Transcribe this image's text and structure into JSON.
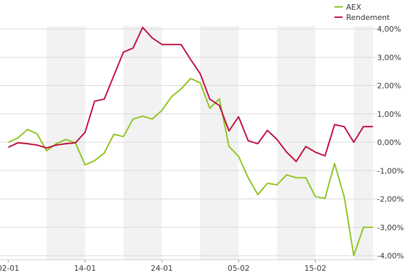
{
  "chart_data": {
    "type": "line",
    "title": "",
    "xlabel": "",
    "ylabel": "",
    "ylim": [
      -4.0,
      4.0
    ],
    "y_ticks": [
      "4,00%",
      "3,00%",
      "2,00%",
      "1,00%",
      "0,00%",
      "-1,00%",
      "-2,00%",
      "-3,00%",
      "-4,00%"
    ],
    "y_tick_values": [
      4,
      3,
      2,
      1,
      0,
      -1,
      -2,
      -3,
      -4
    ],
    "x_tick_labels": [
      "02-01",
      "14-01",
      "24-01",
      "05-02",
      "15-02"
    ],
    "x_tick_indices": [
      0,
      8,
      16,
      24,
      32
    ],
    "shaded_bands": [
      [
        4,
        8
      ],
      [
        12,
        16
      ],
      [
        20,
        24
      ],
      [
        28,
        32
      ],
      [
        36,
        38
      ]
    ],
    "n_points": 39,
    "grid": true,
    "legend_position": "top-right",
    "series": [
      {
        "name": "AEX",
        "color": "#8fc31f",
        "values": [
          0.0,
          0.15,
          0.45,
          0.3,
          -0.3,
          -0.05,
          0.1,
          -0.02,
          -0.8,
          -0.65,
          -0.38,
          0.28,
          0.2,
          0.82,
          0.92,
          0.82,
          1.12,
          1.6,
          1.88,
          2.25,
          2.1,
          1.2,
          1.53,
          -0.15,
          -0.5,
          -1.25,
          -1.85,
          -1.45,
          -1.5,
          -1.15,
          -1.25,
          -1.25,
          -1.92,
          -1.98,
          -0.75,
          -1.92,
          -4.0,
          -3.0,
          -3.0
        ]
      },
      {
        "name": "Rendement",
        "color": "#c00d3b",
        "values": [
          -0.18,
          -0.02,
          -0.05,
          -0.1,
          -0.2,
          -0.1,
          -0.05,
          -0.02,
          0.35,
          1.45,
          1.52,
          2.35,
          3.18,
          3.32,
          4.05,
          3.68,
          3.45,
          3.45,
          3.45,
          2.92,
          2.42,
          1.52,
          1.3,
          0.4,
          0.9,
          0.05,
          -0.05,
          0.42,
          0.1,
          -0.35,
          -0.68,
          -0.15,
          -0.35,
          -0.48,
          0.62,
          0.55,
          0.0,
          0.55,
          0.55
        ]
      }
    ]
  }
}
